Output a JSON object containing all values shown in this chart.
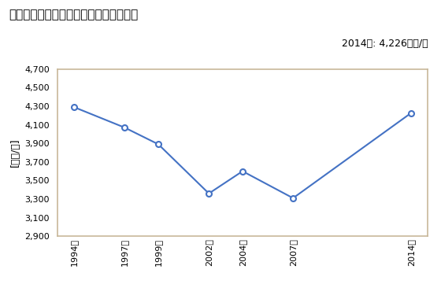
{
  "title": "商業の従業者一人当たり年間商品販売額",
  "ylabel": "[万円/人]",
  "annotation": "2014年: 4,226万円/人",
  "years": [
    1994,
    1997,
    1999,
    2002,
    2004,
    2007,
    2014
  ],
  "values": [
    4290,
    4070,
    3890,
    3360,
    3600,
    3310,
    4226
  ],
  "ylim": [
    2900,
    4700
  ],
  "yticks": [
    2900,
    3100,
    3300,
    3500,
    3700,
    3900,
    4100,
    4300,
    4500,
    4700
  ],
  "line_color": "#4472C4",
  "marker_color": "#4472C4",
  "marker_face": "white",
  "legend_label": "商業の従業者一人当たり年間商品販売額",
  "bg_color": "#FFFFFF",
  "plot_bg_color": "#FFFFFF",
  "border_color": "#C8B89A",
  "title_fontsize": 11,
  "label_fontsize": 9,
  "tick_fontsize": 8,
  "annotation_fontsize": 9
}
